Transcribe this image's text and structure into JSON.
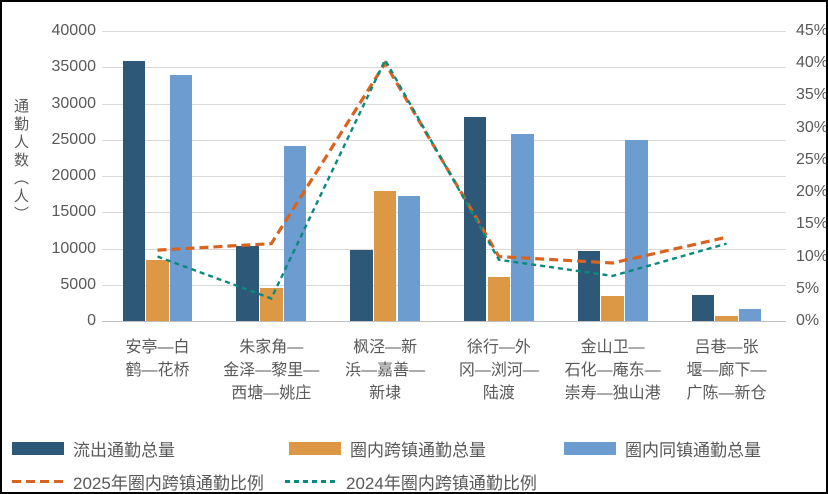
{
  "chart_data": {
    "type": "bar",
    "combo": "grouped bars on left axis + dashed lines on right axis",
    "title": "",
    "left_axis": {
      "title": "通勤人数（人）",
      "min": 0,
      "max": 40000,
      "step": 5000,
      "ticks": [
        "0",
        "5000",
        "10000",
        "15000",
        "20000",
        "25000",
        "30000",
        "35000",
        "40000"
      ]
    },
    "right_axis": {
      "title": "",
      "min": 0,
      "max": 45,
      "step": 5,
      "ticks": [
        "0%",
        "5%",
        "10%",
        "15%",
        "20%",
        "25%",
        "30%",
        "35%",
        "40%",
        "45%"
      ]
    },
    "grid": "horizontal gridlines on, every 5000",
    "legend_position": "bottom, two rows",
    "categories": [
      {
        "name": "安亭—白鹤—花桥",
        "lines": [
          "安亭—白",
          "鹤—花桥"
        ]
      },
      {
        "name": "朱家角—金泽—黎里—西塘—姚庄",
        "lines": [
          "朱家角—",
          "金泽—黎里—",
          "西塘—姚庄"
        ]
      },
      {
        "name": "枫泾—新浜—嘉善—新埭",
        "lines": [
          "枫泾—新",
          "浜—嘉善—",
          "新埭"
        ]
      },
      {
        "name": "徐行—外冈—浏河—陆渡",
        "lines": [
          "徐行—外",
          "冈—浏河—",
          "陆渡"
        ]
      },
      {
        "name": "金山卫—石化—庵东—崇寿—独山港",
        "lines": [
          "金山卫—",
          "石化—庵东—",
          "崇寿—独山港"
        ]
      },
      {
        "name": "吕巷—张堰—廊下—广陈—新仓",
        "lines": [
          "吕巷—张",
          "堰—廊下—",
          "广陈—新仓"
        ]
      }
    ],
    "bar_series": [
      {
        "name": "流出通勤总量",
        "color": "#2E5877",
        "values": [
          35800,
          10400,
          9800,
          28100,
          9700,
          3600
        ]
      },
      {
        "name": "圈内跨镇通勤总量",
        "color": "#DD9846",
        "values": [
          8400,
          4500,
          17900,
          6100,
          3500,
          700
        ]
      },
      {
        "name": "圈内同镇通勤总量",
        "color": "#6D9CD1",
        "values": [
          33900,
          24100,
          17200,
          25800,
          24900,
          1700
        ]
      }
    ],
    "line_series": [
      {
        "name": "2025年圈内跨镇通勤比例",
        "color": "#D9641F",
        "dash": "9 5",
        "stroke": 3.2,
        "values_pct": [
          11,
          12,
          40,
          10,
          9,
          13
        ]
      },
      {
        "name": "2024年圈内跨镇通勤比例",
        "color": "#0A8A7D",
        "dash": "5 4",
        "stroke": 2.4,
        "values_pct": [
          10,
          3.5,
          40.5,
          9.5,
          7,
          12
        ]
      }
    ]
  }
}
